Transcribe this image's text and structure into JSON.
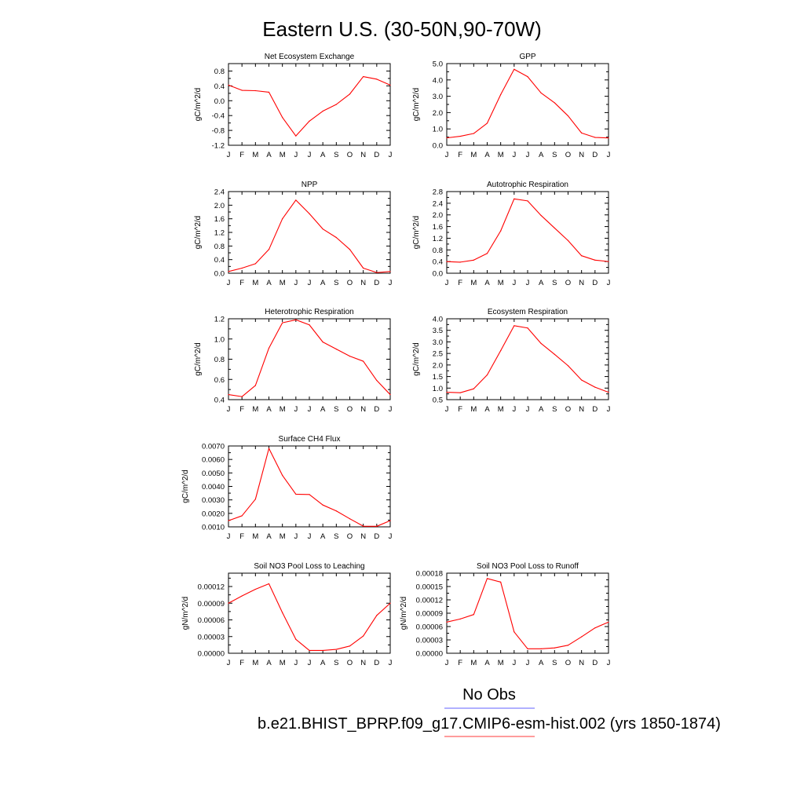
{
  "page": {
    "title": "Eastern U.S. (30-50N,90-70W)"
  },
  "legend": {
    "items": [
      {
        "label": "No Obs",
        "color": "#8080ff"
      },
      {
        "label": "b.e21.BHIST_BPRP.f09_g17.CMIP6-esm-hist.002 (yrs 1850-1874)",
        "color": "#ff6060"
      }
    ]
  },
  "series_color": "#ff0000",
  "chart_data": [
    {
      "type": "line",
      "title": "Net Ecosystem Exchange",
      "ylabel": "gC/m^2/d",
      "x": [
        "J",
        "F",
        "M",
        "A",
        "M",
        "J",
        "J",
        "A",
        "S",
        "O",
        "N",
        "D",
        "J"
      ],
      "values": [
        0.42,
        0.28,
        0.27,
        0.23,
        -0.45,
        -0.95,
        -0.55,
        -0.28,
        -0.1,
        0.18,
        0.65,
        0.58,
        0.42
      ],
      "ylim": [
        -1.2,
        1.0
      ],
      "yticks": [
        "0.8",
        "0.4",
        "0.0",
        "-0.4",
        "-0.8",
        "-1.2"
      ],
      "ytick_values": [
        0.8,
        0.4,
        0.0,
        -0.4,
        -0.8,
        -1.2
      ]
    },
    {
      "type": "line",
      "title": "GPP",
      "ylabel": "gC/m^2/d",
      "x": [
        "J",
        "F",
        "M",
        "A",
        "M",
        "J",
        "J",
        "A",
        "S",
        "O",
        "N",
        "D",
        "J"
      ],
      "values": [
        0.45,
        0.55,
        0.72,
        1.35,
        3.1,
        4.65,
        4.2,
        3.2,
        2.6,
        1.8,
        0.75,
        0.48,
        0.45
      ],
      "ylim": [
        0.0,
        5.0
      ],
      "yticks": [
        "5.0",
        "4.0",
        "3.0",
        "2.0",
        "1.0",
        "0.0"
      ],
      "ytick_values": [
        5.0,
        4.0,
        3.0,
        2.0,
        1.0,
        0.0
      ]
    },
    {
      "type": "line",
      "title": "NPP",
      "ylabel": "gC/m^2/d",
      "x": [
        "J",
        "F",
        "M",
        "A",
        "M",
        "J",
        "J",
        "A",
        "S",
        "O",
        "N",
        "D",
        "J"
      ],
      "values": [
        0.05,
        0.15,
        0.28,
        0.7,
        1.6,
        2.15,
        1.75,
        1.3,
        1.05,
        0.7,
        0.15,
        0.02,
        0.05
      ],
      "ylim": [
        0.0,
        2.4
      ],
      "yticks": [
        "2.4",
        "2.0",
        "1.6",
        "1.2",
        "0.8",
        "0.4",
        "0.0"
      ],
      "ytick_values": [
        2.4,
        2.0,
        1.6,
        1.2,
        0.8,
        0.4,
        0.0
      ]
    },
    {
      "type": "line",
      "title": "Autotrophic Respiration",
      "ylabel": "gC/m^2/d",
      "x": [
        "J",
        "F",
        "M",
        "A",
        "M",
        "J",
        "J",
        "A",
        "S",
        "O",
        "N",
        "D",
        "J"
      ],
      "values": [
        0.4,
        0.38,
        0.45,
        0.68,
        1.45,
        2.55,
        2.48,
        1.98,
        1.55,
        1.12,
        0.6,
        0.45,
        0.4
      ],
      "ylim": [
        0.0,
        2.8
      ],
      "yticks": [
        "2.8",
        "2.4",
        "2.0",
        "1.6",
        "1.2",
        "0.8",
        "0.4",
        "0.0"
      ],
      "ytick_values": [
        2.8,
        2.4,
        2.0,
        1.6,
        1.2,
        0.8,
        0.4,
        0.0
      ]
    },
    {
      "type": "line",
      "title": "Heterotrophic Respiration",
      "ylabel": "gC/m^2/d",
      "x": [
        "J",
        "F",
        "M",
        "A",
        "M",
        "J",
        "J",
        "A",
        "S",
        "O",
        "N",
        "D",
        "J"
      ],
      "values": [
        0.45,
        0.43,
        0.54,
        0.91,
        1.16,
        1.19,
        1.14,
        0.97,
        0.9,
        0.83,
        0.78,
        0.59,
        0.45
      ],
      "ylim": [
        0.4,
        1.2
      ],
      "yticks": [
        "1.2",
        "1.0",
        "0.8",
        "0.6",
        "0.4"
      ],
      "ytick_values": [
        1.2,
        1.0,
        0.8,
        0.6,
        0.4
      ]
    },
    {
      "type": "line",
      "title": "Ecosystem Respiration",
      "ylabel": "gC/m^2/d",
      "x": [
        "J",
        "F",
        "M",
        "A",
        "M",
        "J",
        "J",
        "A",
        "S",
        "O",
        "N",
        "D",
        "J"
      ],
      "values": [
        0.82,
        0.8,
        0.97,
        1.57,
        2.62,
        3.7,
        3.6,
        2.93,
        2.46,
        1.97,
        1.35,
        1.04,
        0.82
      ],
      "ylim": [
        0.5,
        4.0
      ],
      "yticks": [
        "4.0",
        "3.5",
        "3.0",
        "2.5",
        "2.0",
        "1.5",
        "1.0",
        "0.5"
      ],
      "ytick_values": [
        4.0,
        3.5,
        3.0,
        2.5,
        2.0,
        1.5,
        1.0,
        0.5
      ]
    },
    {
      "type": "line",
      "title": "Surface CH4 Flux",
      "ylabel": "gC/m^2/d",
      "x": [
        "J",
        "F",
        "M",
        "A",
        "M",
        "J",
        "J",
        "A",
        "S",
        "O",
        "N",
        "D",
        "J"
      ],
      "values": [
        0.00146,
        0.00182,
        0.00305,
        0.00682,
        0.00482,
        0.00342,
        0.0034,
        0.00262,
        0.00218,
        0.0016,
        0.00105,
        0.00104,
        0.00146
      ],
      "ylim": [
        0.001,
        0.007
      ],
      "yticks": [
        "0.0070",
        "0.0060",
        "0.0050",
        "0.0040",
        "0.0030",
        "0.0020",
        "0.0010"
      ],
      "ytick_values": [
        0.007,
        0.006,
        0.005,
        0.004,
        0.003,
        0.002,
        0.001
      ]
    },
    {
      "type": "line",
      "title": "Soil NO3 Pool Loss to Leaching",
      "ylabel": "gN/m^2/d",
      "x": [
        "J",
        "F",
        "M",
        "A",
        "M",
        "J",
        "J",
        "A",
        "S",
        "O",
        "N",
        "D",
        "J"
      ],
      "values": [
        9e-05,
        0.000103,
        0.000115,
        0.000125,
        7.3e-05,
        2.5e-05,
        5e-06,
        5e-06,
        7e-06,
        1.3e-05,
        3.1e-05,
        6.8e-05,
        9e-05
      ],
      "ylim": [
        0.0,
        0.000144
      ],
      "yticks": [
        "0.00012",
        "0.00009",
        "0.00006",
        "0.00003",
        "0.00000"
      ],
      "ytick_values": [
        0.00012,
        9e-05,
        6e-05,
        3e-05,
        0.0
      ]
    },
    {
      "type": "line",
      "title": "Soil NO3 Pool Loss to Runoff",
      "ylabel": "gN/m^2/d",
      "x": [
        "J",
        "F",
        "M",
        "A",
        "M",
        "J",
        "J",
        "A",
        "S",
        "O",
        "N",
        "D",
        "J"
      ],
      "values": [
        7e-05,
        7.7e-05,
        8.7e-05,
        0.000168,
        0.00016,
        4.8e-05,
        1e-05,
        1e-05,
        1.2e-05,
        1.8e-05,
        3.7e-05,
        5.7e-05,
        7e-05
      ],
      "ylim": [
        0.0,
        0.00018
      ],
      "yticks": [
        "0.00018",
        "0.00015",
        "0.00012",
        "0.00009",
        "0.00006",
        "0.00003",
        "0.00000"
      ],
      "ytick_values": [
        0.00018,
        0.00015,
        0.00012,
        9e-05,
        6e-05,
        3e-05,
        0.0
      ]
    }
  ]
}
